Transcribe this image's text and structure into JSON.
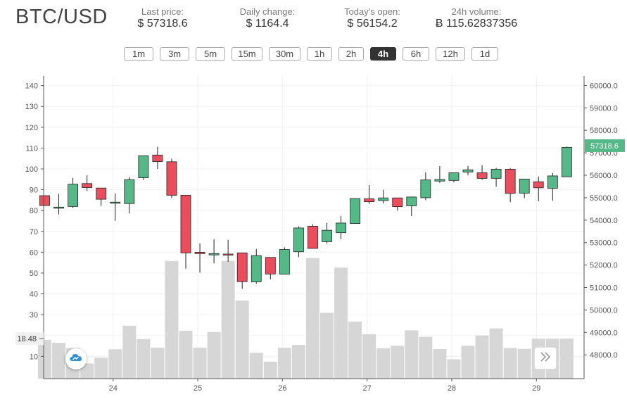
{
  "header": {
    "pair": "BTC/USD",
    "stats": [
      {
        "label": "Last price:",
        "value": "$ 57318.6"
      },
      {
        "label": "Daily change:",
        "value": "$ 1164.4"
      },
      {
        "label": "Today's open:",
        "value": "$ 56154.2"
      },
      {
        "label": "24h volume:",
        "value": "Ƀ 115.62837356"
      }
    ]
  },
  "intervals": [
    "1m",
    "3m",
    "5m",
    "15m",
    "30m",
    "1h",
    "2h",
    "4h",
    "6h",
    "12h",
    "1d"
  ],
  "active_interval": "4h",
  "colors": {
    "up": "#53b987",
    "down": "#eb4d5c",
    "volume": "#d6d6d6",
    "last_price": "#53b987"
  },
  "chart_data": {
    "type": "candlestick",
    "x_ticks": [
      "24",
      "25",
      "26",
      "27",
      "28",
      "29"
    ],
    "price_axis": {
      "ticks": [
        "48000.0",
        "49000.0",
        "50000.0",
        "51000.0",
        "52000.0",
        "53000.0",
        "54000.0",
        "55000.0",
        "56000.0",
        "57000.0",
        "58000.0",
        "59000.0",
        "60000.0"
      ],
      "range": [
        46940,
        60420
      ]
    },
    "volume_axis": {
      "ticks": [
        "10",
        "20",
        "30",
        "40",
        "50",
        "60",
        "70",
        "80",
        "90",
        "100",
        "110",
        "120",
        "130",
        "140"
      ],
      "range": [
        -0.7,
        144.6
      ]
    },
    "last_price_label": "57318.6",
    "crosshair_volume_label": "18.48",
    "candles": [
      {
        "o": 55090,
        "c": 54650,
        "h": 55090,
        "l": 54650,
        "v": 17.9
      },
      {
        "o": 54530,
        "c": 54580,
        "h": 55170,
        "l": 54250,
        "v": 16.5
      },
      {
        "o": 54610,
        "c": 55600,
        "h": 55880,
        "l": 54540,
        "v": 14.0
      },
      {
        "o": 55630,
        "c": 55450,
        "h": 56000,
        "l": 55290,
        "v": 6.6
      },
      {
        "o": 55430,
        "c": 54930,
        "h": 55430,
        "l": 54630,
        "v": 9.4
      },
      {
        "o": 54770,
        "c": 54800,
        "h": 55200,
        "l": 53970,
        "v": 13.4
      },
      {
        "o": 54740,
        "c": 55800,
        "h": 55920,
        "l": 54300,
        "v": 24.7
      },
      {
        "o": 55890,
        "c": 56870,
        "h": 56870,
        "l": 55790,
        "v": 18.3
      },
      {
        "o": 56900,
        "c": 56610,
        "h": 57270,
        "l": 56280,
        "v": 14.2
      },
      {
        "o": 56600,
        "c": 55110,
        "h": 56730,
        "l": 54990,
        "v": 55.8
      },
      {
        "o": 55110,
        "c": 52540,
        "h": 55110,
        "l": 51840,
        "v": 22.3
      },
      {
        "o": 52570,
        "c": 52510,
        "h": 52960,
        "l": 51660,
        "v": 14.2
      },
      {
        "o": 52450,
        "c": 52510,
        "h": 53150,
        "l": 52080,
        "v": 21.7
      },
      {
        "o": 52490,
        "c": 52450,
        "h": 53120,
        "l": 52150,
        "v": 55.9
      },
      {
        "o": 52540,
        "c": 51260,
        "h": 52540,
        "l": 50940,
        "v": 36.8
      },
      {
        "o": 51250,
        "c": 52420,
        "h": 52720,
        "l": 51170,
        "v": 11.7
      },
      {
        "o": 52340,
        "c": 51600,
        "h": 52340,
        "l": 51360,
        "v": 7.4
      },
      {
        "o": 51590,
        "c": 52690,
        "h": 52790,
        "l": 51590,
        "v": 14.1
      },
      {
        "o": 52590,
        "c": 53650,
        "h": 53720,
        "l": 52350,
        "v": 15.5
      },
      {
        "o": 53730,
        "c": 52740,
        "h": 53810,
        "l": 52740,
        "v": 57.2
      },
      {
        "o": 53040,
        "c": 53550,
        "h": 53870,
        "l": 52960,
        "v": 30.9
      },
      {
        "o": 53440,
        "c": 53870,
        "h": 54190,
        "l": 53150,
        "v": 52.6
      },
      {
        "o": 53850,
        "c": 54960,
        "h": 54960,
        "l": 53850,
        "v": 26.7
      },
      {
        "o": 54950,
        "c": 54820,
        "h": 55560,
        "l": 54720,
        "v": 20.6
      },
      {
        "o": 54870,
        "c": 54990,
        "h": 55350,
        "l": 54740,
        "v": 13.9
      },
      {
        "o": 54990,
        "c": 54600,
        "h": 55000,
        "l": 54420,
        "v": 15.1
      },
      {
        "o": 54640,
        "c": 55030,
        "h": 55050,
        "l": 54180,
        "v": 22.5
      },
      {
        "o": 55000,
        "c": 55790,
        "h": 56130,
        "l": 54890,
        "v": 19.4
      },
      {
        "o": 55740,
        "c": 55810,
        "h": 56410,
        "l": 55660,
        "v": 13.5
      },
      {
        "o": 55770,
        "c": 56110,
        "h": 56110,
        "l": 55680,
        "v": 8.6
      },
      {
        "o": 56140,
        "c": 56240,
        "h": 56420,
        "l": 56000,
        "v": 15.1
      },
      {
        "o": 56110,
        "c": 55860,
        "h": 56450,
        "l": 55790,
        "v": 20.0
      },
      {
        "o": 55860,
        "c": 56270,
        "h": 56330,
        "l": 55480,
        "v": 23.4
      },
      {
        "o": 56270,
        "c": 55190,
        "h": 56320,
        "l": 54800,
        "v": 14.0
      },
      {
        "o": 55200,
        "c": 55830,
        "h": 55830,
        "l": 54980,
        "v": 13.6
      },
      {
        "o": 55710,
        "c": 55440,
        "h": 55940,
        "l": 54840,
        "v": 18.5
      },
      {
        "o": 55420,
        "c": 55970,
        "h": 56100,
        "l": 54860,
        "v": 18.5
      },
      {
        "o": 55930,
        "c": 57240,
        "h": 57280,
        "l": 55920,
        "v": 18.5
      }
    ]
  }
}
